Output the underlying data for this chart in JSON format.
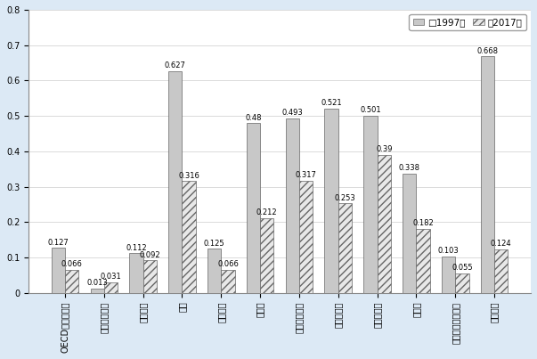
{
  "categories": [
    "OECD加盟国平均",
    "アルゼンチン",
    "ブラジル",
    "中国",
    "エジプト",
    "インド",
    "インドネシア",
    "マレーシア",
    "フィリピン",
    "ロシア",
    "南アフリカ共和国",
    "ベトナム"
  ],
  "values_1997": [
    0.127,
    0.013,
    0.112,
    0.627,
    0.125,
    0.48,
    0.493,
    0.521,
    0.501,
    0.338,
    0.103,
    0.668
  ],
  "values_2017": [
    0.066,
    0.031,
    0.092,
    0.316,
    0.066,
    0.212,
    0.317,
    0.253,
    0.39,
    0.182,
    0.055,
    0.124
  ],
  "bar_color_1997": "#c8c8c8",
  "bar_color_2017": "#e8e8e8",
  "hatch_1997": "",
  "hatch_2017": "////",
  "ylim": [
    0,
    0.8
  ],
  "yticks": [
    0,
    0.1,
    0.2,
    0.3,
    0.4,
    0.5,
    0.6,
    0.7,
    0.8
  ],
  "legend_label_1997": "□1997年",
  "legend_label_2017": "図2017年",
  "background_color": "#dce9f5",
  "plot_bg_color": "#ffffff",
  "bar_width": 0.35,
  "label_fontsize": 6,
  "tick_fontsize": 7,
  "legend_fontsize": 7.5
}
